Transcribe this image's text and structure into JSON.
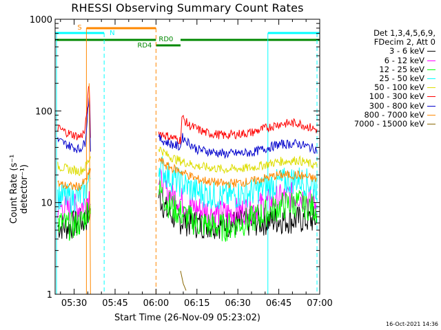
{
  "chart_data": {
    "type": "line",
    "title": "RHESSI Observing Summary Count Rates",
    "xlabel": "Start Time (26-Nov-09 05:23:02)",
    "ylabel": "Count Rate (s⁻¹ detector⁻¹)",
    "yscale": "log",
    "ylim": [
      1,
      1000
    ],
    "xlim": [
      "05:23:02",
      "07:00:00"
    ],
    "x_ticks": [
      "05:30",
      "05:45",
      "06:00",
      "06:15",
      "06:30",
      "06:45",
      "07:00"
    ],
    "y_ticks": [
      "1",
      "10",
      "100",
      "1000"
    ],
    "legend_header": [
      "Det 1,3,4,5,6,9,",
      "FDecim 2, Att 0"
    ],
    "series": [
      {
        "name": "3 - 6 keV",
        "color": "#000000",
        "points": [
          [
            "05:24",
            5.5
          ],
          [
            "05:28",
            5.5
          ],
          [
            "05:32",
            6
          ],
          [
            "05:34",
            6.5
          ],
          [
            "05:36",
            8
          ],
          [
            "06:01",
            12
          ],
          [
            "06:04",
            8
          ],
          [
            "06:08",
            6.5
          ],
          [
            "06:15",
            5.8
          ],
          [
            "06:25",
            5.8
          ],
          [
            "06:35",
            6
          ],
          [
            "06:45",
            6.5
          ],
          [
            "06:55",
            6.5
          ],
          [
            "06:59",
            6.5
          ]
        ]
      },
      {
        "name": "6 - 12 keV",
        "color": "#ff00ff",
        "points": [
          [
            "05:24",
            9
          ],
          [
            "05:28",
            8.5
          ],
          [
            "05:32",
            9
          ],
          [
            "05:34",
            10
          ],
          [
            "05:36",
            13
          ],
          [
            "06:01",
            18
          ],
          [
            "06:04",
            13
          ],
          [
            "06:08",
            11
          ],
          [
            "06:15",
            8.5
          ],
          [
            "06:25",
            7.5
          ],
          [
            "06:35",
            8.5
          ],
          [
            "06:45",
            11
          ],
          [
            "06:52",
            12
          ],
          [
            "06:59",
            10
          ]
        ]
      },
      {
        "name": "12 - 25 keV",
        "color": "#00ff00",
        "points": [
          [
            "05:24",
            6
          ],
          [
            "05:28",
            5.5
          ],
          [
            "05:32",
            6
          ],
          [
            "05:34",
            7
          ],
          [
            "05:36",
            10
          ],
          [
            "06:01",
            14
          ],
          [
            "06:04",
            10
          ],
          [
            "06:08",
            8
          ],
          [
            "06:15",
            6
          ],
          [
            "06:25",
            5.3
          ],
          [
            "06:35",
            6.5
          ],
          [
            "06:45",
            9
          ],
          [
            "06:52",
            10
          ],
          [
            "06:59",
            8.5
          ]
        ]
      },
      {
        "name": "25 - 50 keV",
        "color": "#00ffff",
        "points": [
          [
            "05:24",
            12
          ],
          [
            "05:28",
            11
          ],
          [
            "05:32",
            11.5
          ],
          [
            "05:34",
            13
          ],
          [
            "05:36",
            20
          ],
          [
            "06:01",
            26
          ],
          [
            "06:04",
            20
          ],
          [
            "06:08",
            17
          ],
          [
            "06:15",
            13
          ],
          [
            "06:25",
            11.5
          ],
          [
            "06:35",
            13
          ],
          [
            "06:45",
            16.5
          ],
          [
            "06:52",
            18
          ],
          [
            "06:59",
            15
          ]
        ]
      },
      {
        "name": "50 - 100 keV",
        "color": "#dddd00",
        "points": [
          [
            "05:24",
            25
          ],
          [
            "05:28",
            23
          ],
          [
            "05:32",
            22
          ],
          [
            "05:34",
            24
          ],
          [
            "05:36",
            32
          ],
          [
            "06:01",
            40
          ],
          [
            "06:04",
            33
          ],
          [
            "06:08",
            29
          ],
          [
            "06:15",
            25
          ],
          [
            "06:25",
            23
          ],
          [
            "06:35",
            24
          ],
          [
            "06:45",
            28
          ],
          [
            "06:52",
            29
          ],
          [
            "06:59",
            25
          ]
        ]
      },
      {
        "name": "100 - 300 keV",
        "color": "#ff0000",
        "points": [
          [
            "05:24",
            65
          ],
          [
            "05:28",
            57
          ],
          [
            "05:32",
            52
          ],
          [
            "05:34",
            60
          ],
          [
            "05:35.5",
            200
          ],
          [
            "05:36",
            55
          ],
          [
            "06:01",
            58
          ],
          [
            "06:05",
            52
          ],
          [
            "06:09",
            48
          ],
          [
            "06:09.5",
            85
          ],
          [
            "06:12",
            70
          ],
          [
            "06:18",
            58
          ],
          [
            "06:25",
            54
          ],
          [
            "06:35",
            58
          ],
          [
            "06:45",
            72
          ],
          [
            "06:52",
            74
          ],
          [
            "06:59",
            62
          ]
        ]
      },
      {
        "name": "300 - 800 keV",
        "color": "#0000cc",
        "points": [
          [
            "05:24",
            48
          ],
          [
            "05:28",
            42
          ],
          [
            "05:32",
            38
          ],
          [
            "05:34",
            45
          ],
          [
            "05:35.5",
            150
          ],
          [
            "05:36",
            40
          ],
          [
            "06:01",
            50
          ],
          [
            "06:05",
            44
          ],
          [
            "06:09",
            40
          ],
          [
            "06:09.5",
            52
          ],
          [
            "06:15",
            38
          ],
          [
            "06:25",
            34
          ],
          [
            "06:35",
            35
          ],
          [
            "06:45",
            43
          ],
          [
            "06:52",
            44
          ],
          [
            "06:59",
            38
          ]
        ]
      },
      {
        "name": "800 - 7000 keV",
        "color": "#ff8800",
        "points": [
          [
            "05:24",
            16
          ],
          [
            "05:28",
            15
          ],
          [
            "05:32",
            15
          ],
          [
            "05:34",
            17
          ],
          [
            "05:36",
            22
          ],
          [
            "06:01",
            30
          ],
          [
            "06:04",
            25
          ],
          [
            "06:09",
            22
          ],
          [
            "06:15",
            18
          ],
          [
            "06:25",
            16
          ],
          [
            "06:35",
            17
          ],
          [
            "06:45",
            20
          ],
          [
            "06:52",
            20
          ],
          [
            "06:59",
            18
          ]
        ]
      },
      {
        "name": "7000 - 15000 keV",
        "color": "#886600",
        "points": [
          [
            "06:09",
            1.8
          ],
          [
            "06:10",
            1.3
          ],
          [
            "06:11",
            1.1
          ]
        ]
      }
    ],
    "flags": [
      {
        "label": "S",
        "color": "#ff8800"
      },
      {
        "label": "N",
        "color": "#00ffff"
      },
      {
        "label": "RD0",
        "color": "#008800"
      },
      {
        "label": "RD4",
        "color": "#008800"
      }
    ],
    "timestamp": "16-Oct-2021 14:36"
  }
}
